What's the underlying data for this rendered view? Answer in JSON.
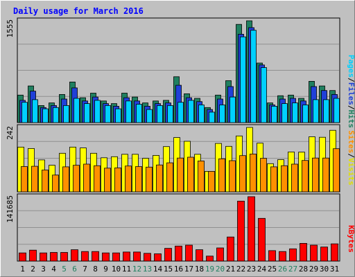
{
  "chart_data": {
    "type": "bar",
    "title": "Daily usage for March 2016",
    "categories": [
      "1",
      "2",
      "3",
      "4",
      "5",
      "6",
      "7",
      "8",
      "9",
      "10",
      "11",
      "12",
      "13",
      "14",
      "15",
      "16",
      "17",
      "18",
      "19",
      "20",
      "21",
      "22",
      "23",
      "24",
      "25",
      "26",
      "27",
      "28",
      "29",
      "30",
      "31"
    ],
    "weekend_days": [
      5,
      6,
      12,
      13,
      19,
      20,
      26,
      27
    ],
    "panels": [
      {
        "id": "hits",
        "max_label": "1555",
        "ymax": 1555,
        "legend": [
          "Pages",
          "Files",
          "Hits"
        ],
        "series": [
          {
            "name": "Hits",
            "color": "#208060",
            "values": [
              420,
              560,
              260,
              300,
              430,
              620,
              380,
              450,
              330,
              290,
              450,
              390,
              300,
              330,
              340,
              700,
              440,
              370,
              230,
              420,
              640,
              1500,
              1555,
              910,
              300,
              410,
              420,
              370,
              630,
              560,
              490
            ]
          },
          {
            "name": "Files",
            "color": "#2040d8",
            "values": [
              340,
              480,
              230,
              260,
              360,
              530,
              330,
              390,
              290,
              250,
              380,
              330,
              250,
              290,
              300,
              570,
              380,
              320,
              200,
              360,
              550,
              1350,
              1450,
              880,
              270,
              360,
              370,
              330,
              550,
              490,
              430
            ]
          },
          {
            "name": "Pages",
            "color": "#00d0ff",
            "values": [
              310,
              350,
              210,
              230,
              260,
              370,
              290,
              340,
              260,
              210,
              330,
              280,
              200,
              260,
              260,
              310,
              340,
              270,
              160,
              270,
              390,
              1310,
              1410,
              840,
              250,
              290,
              300,
              270,
              350,
              350,
              370
            ]
          }
        ]
      },
      {
        "id": "visits",
        "max_label": "242",
        "ymax": 242,
        "legend": [
          "Sites",
          "Visits"
        ],
        "series": [
          {
            "name": "Visits",
            "color": "#ffff00",
            "values": [
              168,
              163,
              120,
              100,
              145,
              168,
              165,
              145,
              128,
              132,
              141,
              141,
              126,
              137,
              170,
              204,
              190,
              141,
              77,
              182,
              171,
              210,
              242,
              183,
              106,
              121,
              150,
              149,
              207,
              205,
              231
            ]
          },
          {
            "name": "Sites",
            "color": "#ff9000",
            "values": [
              95,
              96,
              82,
              63,
              94,
              100,
              104,
              98,
              89,
              90,
              97,
              95,
              93,
              101,
              109,
              127,
              130,
              116,
              77,
              124,
              117,
              136,
              142,
              126,
              94,
              98,
              104,
              118,
              127,
              127,
              162
            ]
          }
        ]
      },
      {
        "id": "kbytes",
        "max_label": "141685",
        "ymax": 141685,
        "legend": [
          "KBytes"
        ],
        "series": [
          {
            "name": "KBytes",
            "color": "#ff0000",
            "values": [
              18000,
              24000,
              18000,
              19000,
              19000,
              25000,
              21000,
              21000,
              18000,
              18000,
              20000,
              20000,
              17000,
              16000,
              28000,
              33000,
              35000,
              25000,
              11000,
              29000,
              53000,
              132000,
              141685,
              94000,
              23000,
              21000,
              27000,
              39000,
              35000,
              31000,
              38000
            ]
          }
        ]
      }
    ],
    "legend_placement": "right",
    "grid": true
  },
  "colors": {
    "background": "#c0c0c0",
    "plot_background": "#c0c0c0",
    "title": "#0000ff",
    "weekday_label": "#000000",
    "weekend_label": "#208060",
    "legend_hits": "#208060",
    "legend_files": "#2040d8",
    "legend_pages": "#00d0ff",
    "legend_visits": "#e0e000",
    "legend_sites": "#ff9000",
    "legend_kbytes": "#ff0000"
  }
}
